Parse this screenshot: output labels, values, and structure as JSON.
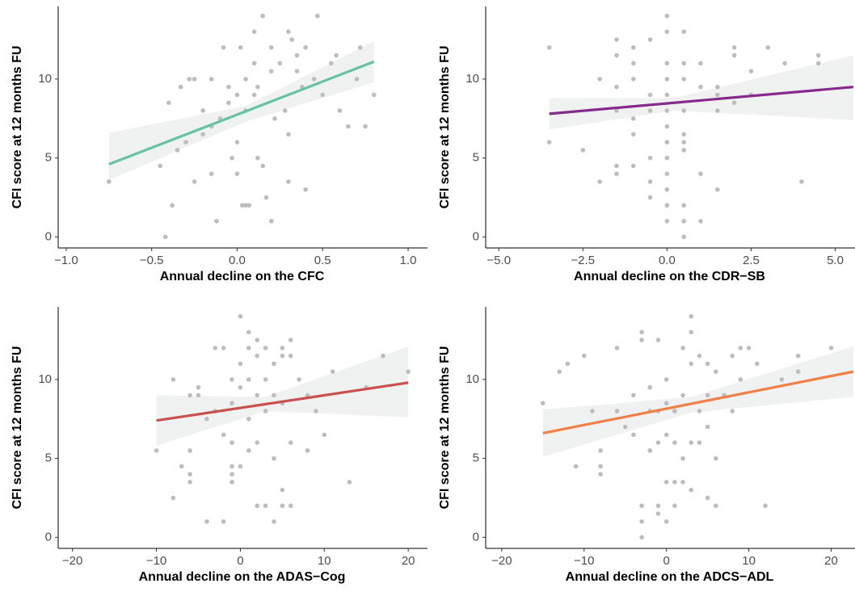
{
  "chart_data": [
    {
      "type": "scatter",
      "xlabel": "Annual decline on the CFC",
      "ylabel": "CFI score at 12 months FU",
      "xlim": [
        -1.047,
        1.104
      ],
      "ylim": [
        -0.7,
        14.6
      ],
      "xticks": [
        {
          "value": -1.0,
          "label": "−1.0"
        },
        {
          "value": -0.5,
          "label": "−0.5"
        },
        {
          "value": 0,
          "label": "0.0"
        },
        0.5,
        {
          "value": 1.0,
          "label": "1.0"
        }
      ],
      "yticks": [
        0,
        5,
        10
      ],
      "color": "#bdbdbd",
      "x": [
        -0.75,
        -0.45,
        -0.42,
        -0.4,
        -0.38,
        -0.35,
        -0.33,
        -0.3,
        -0.28,
        -0.25,
        -0.25,
        -0.2,
        -0.2,
        -0.15,
        -0.15,
        -0.12,
        -0.1,
        -0.08,
        -0.05,
        -0.05,
        -0.03,
        0,
        0,
        0.02,
        0.03,
        0.05,
        0.05,
        0.07,
        0.1,
        0.1,
        0.12,
        0.12,
        0.15,
        0.15,
        0.17,
        0.2,
        0.2,
        0.2,
        0.22,
        0.25,
        0.28,
        0.3,
        0.3,
        0.32,
        0.35,
        0.38,
        0.4,
        0.4,
        0.45,
        0.47,
        0.5,
        0.55,
        0.6,
        0.65,
        0.7,
        0.72,
        0.75,
        0.8,
        0.58,
        0.3,
        0.05,
        -0.15,
        0,
        0.1,
        0.35
      ],
      "y": [
        3.5,
        4.5,
        0,
        8.5,
        2,
        5.5,
        9.5,
        6,
        10,
        10,
        3.5,
        8,
        6.5,
        4,
        7,
        1,
        7.5,
        12,
        8.5,
        9.5,
        5,
        4,
        9,
        12,
        2,
        2,
        8,
        2,
        11,
        13,
        5,
        9.5,
        14,
        4.5,
        2.5,
        10.5,
        12,
        1,
        7.5,
        11,
        8,
        6.5,
        3.5,
        12.5,
        11.5,
        9.5,
        3,
        12,
        10,
        14,
        9,
        11,
        8,
        7,
        10,
        12,
        7,
        9,
        11.5,
        13,
        10,
        10,
        6,
        9,
        10.5
      ],
      "fit": {
        "color": "#66c2a5",
        "x": [
          -0.75,
          0.8
        ],
        "y": [
          4.6,
          11.1
        ]
      },
      "band": {
        "x": [
          -0.75,
          0.05,
          0.8
        ],
        "lower": [
          3.6,
          7.3,
          9.8
        ],
        "upper": [
          6.6,
          8.3,
          12.4
        ]
      }
    },
    {
      "type": "scatter",
      "xlabel": "Annual decline on the CDR−SB",
      "ylabel": "CFI score at 12 months FU",
      "xlim": [
        -5.39,
        5.54
      ],
      "ylim": [
        -0.7,
        14.6
      ],
      "xticks": [
        {
          "value": -5.0,
          "label": "−5.0"
        },
        {
          "value": -2.5,
          "label": "−2.5"
        },
        {
          "value": 0,
          "label": "0.0"
        },
        2.5,
        {
          "value": 5.0,
          "label": "5.0"
        }
      ],
      "yticks": [
        0,
        5,
        10
      ],
      "color": "#bdbdbd",
      "x": [
        -3.5,
        -3.5,
        -2.5,
        -2,
        -2,
        -1.5,
        -1.5,
        -1.5,
        -1.5,
        -1.5,
        -1.5,
        -1,
        -1,
        -1,
        -1,
        -1,
        -1,
        -0.5,
        -0.5,
        -0.5,
        -0.5,
        -0.5,
        -0.5,
        0,
        0,
        0,
        0,
        0,
        0,
        0,
        0,
        0,
        0,
        0,
        0,
        0,
        0.5,
        0.5,
        0.5,
        0.5,
        0.5,
        0.5,
        0.5,
        0.5,
        0.5,
        0.5,
        1,
        1,
        1,
        1,
        1.5,
        1.5,
        1.5,
        1.5,
        2,
        2,
        2,
        2.5,
        3,
        3.5,
        4,
        4.5,
        4.5,
        2.5
      ],
      "y": [
        12,
        6,
        5.5,
        10,
        3.5,
        12.5,
        11.5,
        9.5,
        8,
        4.5,
        4,
        11,
        10,
        7.5,
        6.5,
        4.5,
        12,
        12.5,
        9,
        8,
        5,
        2.5,
        3.5,
        14,
        13,
        11,
        10,
        9,
        8,
        7,
        6,
        5,
        4,
        3,
        2,
        1,
        13,
        11,
        10,
        8,
        6.5,
        6,
        5.5,
        2,
        1,
        0,
        11,
        9.5,
        4,
        1,
        9.5,
        9,
        8,
        3,
        8.5,
        11.5,
        12,
        9,
        12,
        11,
        3.5,
        11,
        11.5,
        10.5
      ],
      "fit": {
        "color": "#862a8c",
        "x": [
          -3.5,
          5.54
        ],
        "y": [
          7.8,
          9.5
        ]
      },
      "band": {
        "x": [
          -3.5,
          0.2,
          5.54
        ],
        "lower": [
          6.8,
          8.0,
          7.4
        ],
        "upper": [
          8.8,
          8.8,
          11.5
        ]
      }
    },
    {
      "type": "scatter",
      "xlabel": "Annual decline on the ADAS−Cog",
      "ylabel": "CFI score at 12 months FU",
      "xlim": [
        -21.7,
        22.1
      ],
      "ylim": [
        -0.7,
        14.6
      ],
      "xticks": [
        {
          "value": -20,
          "label": "−20"
        },
        {
          "value": -10,
          "label": "−10"
        },
        0,
        10,
        20
      ],
      "yticks": [
        0,
        5,
        10
      ],
      "color": "#bdbdbd",
      "x": [
        -10,
        -8,
        -8,
        -7,
        -6,
        -6,
        -6,
        -6,
        -5,
        -5,
        -4,
        -4,
        -3,
        -3,
        -2,
        -2,
        -2,
        -1,
        -1,
        -1,
        -1,
        -1,
        -1,
        0,
        0,
        0,
        0,
        1,
        1,
        1,
        1,
        2,
        2,
        2,
        2,
        3,
        3,
        3,
        3,
        4,
        4,
        4,
        4,
        5,
        5,
        5,
        5,
        5,
        6,
        6,
        6,
        6,
        7,
        8,
        8,
        9,
        10,
        11,
        13,
        15,
        17,
        20,
        2,
        1
      ],
      "y": [
        5.5,
        10,
        2.5,
        4.5,
        9,
        5.5,
        4,
        3.5,
        9.5,
        9,
        7.5,
        1,
        12,
        8,
        12,
        6.5,
        1,
        10,
        8.5,
        6,
        4.5,
        4,
        3.5,
        14,
        11,
        9.5,
        4.5,
        12,
        10,
        7.5,
        5.5,
        11.5,
        9,
        6,
        2,
        12,
        10,
        8,
        2,
        11,
        9,
        5,
        1,
        12,
        11.5,
        8.5,
        2,
        3,
        12.5,
        6,
        2,
        11.5,
        10,
        9,
        5.5,
        8,
        6.5,
        10.5,
        3.5,
        9.5,
        11.5,
        10.5,
        12.5,
        13
      ],
      "fit": {
        "color": "#c9504f",
        "x": [
          -10,
          20
        ],
        "y": [
          7.4,
          9.8
        ]
      },
      "band": {
        "x": [
          -10,
          3,
          20
        ],
        "lower": [
          5.8,
          8.0,
          7.6
        ],
        "upper": [
          9.0,
          8.9,
          12.1
        ]
      }
    },
    {
      "type": "scatter",
      "xlabel": "Annual decline on the ADCS−ADL",
      "ylabel": "CFI score at 12 months FU",
      "xlim": [
        -21.95,
        22.7
      ],
      "ylim": [
        -0.7,
        14.6
      ],
      "xticks": [
        {
          "value": -20,
          "label": "−20"
        },
        {
          "value": -10,
          "label": "−10"
        },
        0,
        10,
        20
      ],
      "yticks": [
        0,
        5,
        10
      ],
      "color": "#bdbdbd",
      "x": [
        -15,
        -13,
        -12,
        -11,
        -10,
        -9,
        -8,
        -8,
        -8,
        -6,
        -6,
        -5,
        -4,
        -4,
        -3,
        -3,
        -3,
        -3,
        -3,
        -2,
        -2,
        -2,
        -1,
        -1,
        -1,
        -1,
        -1,
        0,
        0,
        0,
        0,
        0,
        1,
        1,
        1,
        1,
        2,
        2,
        2,
        2,
        3,
        3,
        3,
        3,
        3,
        4,
        4,
        4,
        5,
        5,
        5,
        5,
        6,
        6,
        6,
        7,
        8,
        8,
        9,
        9,
        10,
        11,
        12,
        14,
        16,
        16,
        20
      ],
      "y": [
        8.5,
        10.5,
        11,
        4.5,
        11.5,
        8,
        4.5,
        4,
        5.5,
        8,
        12,
        7,
        9,
        6.5,
        13,
        12.5,
        1,
        0,
        2,
        9.5,
        8,
        5.5,
        12.5,
        8,
        6,
        2,
        1.5,
        10,
        8.5,
        6.5,
        3.5,
        1,
        8,
        6,
        3.5,
        2,
        12,
        9,
        5,
        3.5,
        14,
        13,
        11,
        6,
        3,
        11.5,
        8,
        6,
        11,
        9,
        7,
        2.5,
        10.5,
        5,
        2,
        9,
        11.5,
        8,
        10,
        12,
        12,
        11,
        2,
        10,
        11.5,
        10.5,
        12
      ],
      "fit": {
        "color": "#f08048",
        "x": [
          -15,
          22.7
        ],
        "y": [
          6.6,
          10.5
        ]
      },
      "band": {
        "x": [
          -15,
          3,
          22.7
        ],
        "lower": [
          5.1,
          7.9,
          8.9
        ],
        "upper": [
          8.1,
          8.9,
          12.1
        ]
      }
    }
  ]
}
